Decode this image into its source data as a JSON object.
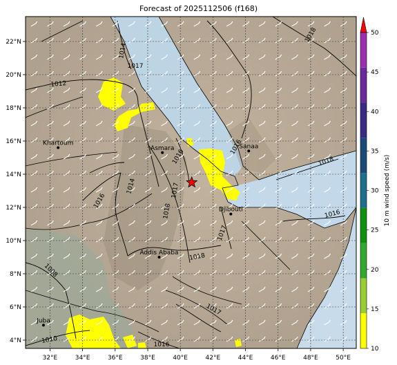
{
  "title": "Forecast of 2025112506 (f168)",
  "map": {
    "lon_range": [
      30.5,
      50.8
    ],
    "lat_range": [
      3.5,
      23.5
    ],
    "x_ticks": [
      "32°E",
      "34°E",
      "36°E",
      "38°E",
      "40°E",
      "42°E",
      "44°E",
      "46°E",
      "48°E",
      "50°E"
    ],
    "y_ticks": [
      "4°N",
      "6°N",
      "8°N",
      "10°N",
      "12°N",
      "14°N",
      "16°N",
      "18°N",
      "20°N",
      "22°N"
    ],
    "gridlines": true,
    "cities": [
      {
        "name": "Khartoum",
        "lon": 32.5,
        "lat": 15.6
      },
      {
        "name": "Asmara",
        "lon": 38.9,
        "lat": 15.3
      },
      {
        "name": "Sanaa",
        "lon": 44.2,
        "lat": 15.4
      },
      {
        "name": "Djibouti",
        "lon": 43.1,
        "lat": 11.6
      },
      {
        "name": "Addis Ababa",
        "lon": 38.7,
        "lat": 9.0
      },
      {
        "name": "Juba",
        "lon": 31.6,
        "lat": 4.9
      }
    ],
    "marker": {
      "symbol": "star",
      "lon": 40.7,
      "lat": 13.5,
      "color": "#ff0000"
    },
    "isobar_labels": [
      "1018",
      "1012",
      "1014",
      "1016",
      "1017",
      "1018",
      "1014",
      "1016",
      "1018",
      "1017",
      "1008",
      "1017",
      "1016",
      "1010",
      "1016",
      "1016",
      "1018",
      "1017"
    ]
  },
  "colorbar": {
    "label": "10 m wind speed (m/s)",
    "ticks": [
      "10",
      "15",
      "20",
      "25",
      "30",
      "35",
      "40",
      "45",
      "50"
    ],
    "colors": [
      "#ffff00",
      "#9acd32",
      "#32a832",
      "#109010",
      "#1e6e8c",
      "#1a4a78",
      "#3a2a80",
      "#6a2a9a",
      "#9a30b0"
    ],
    "extend_color": "#ff0000"
  }
}
